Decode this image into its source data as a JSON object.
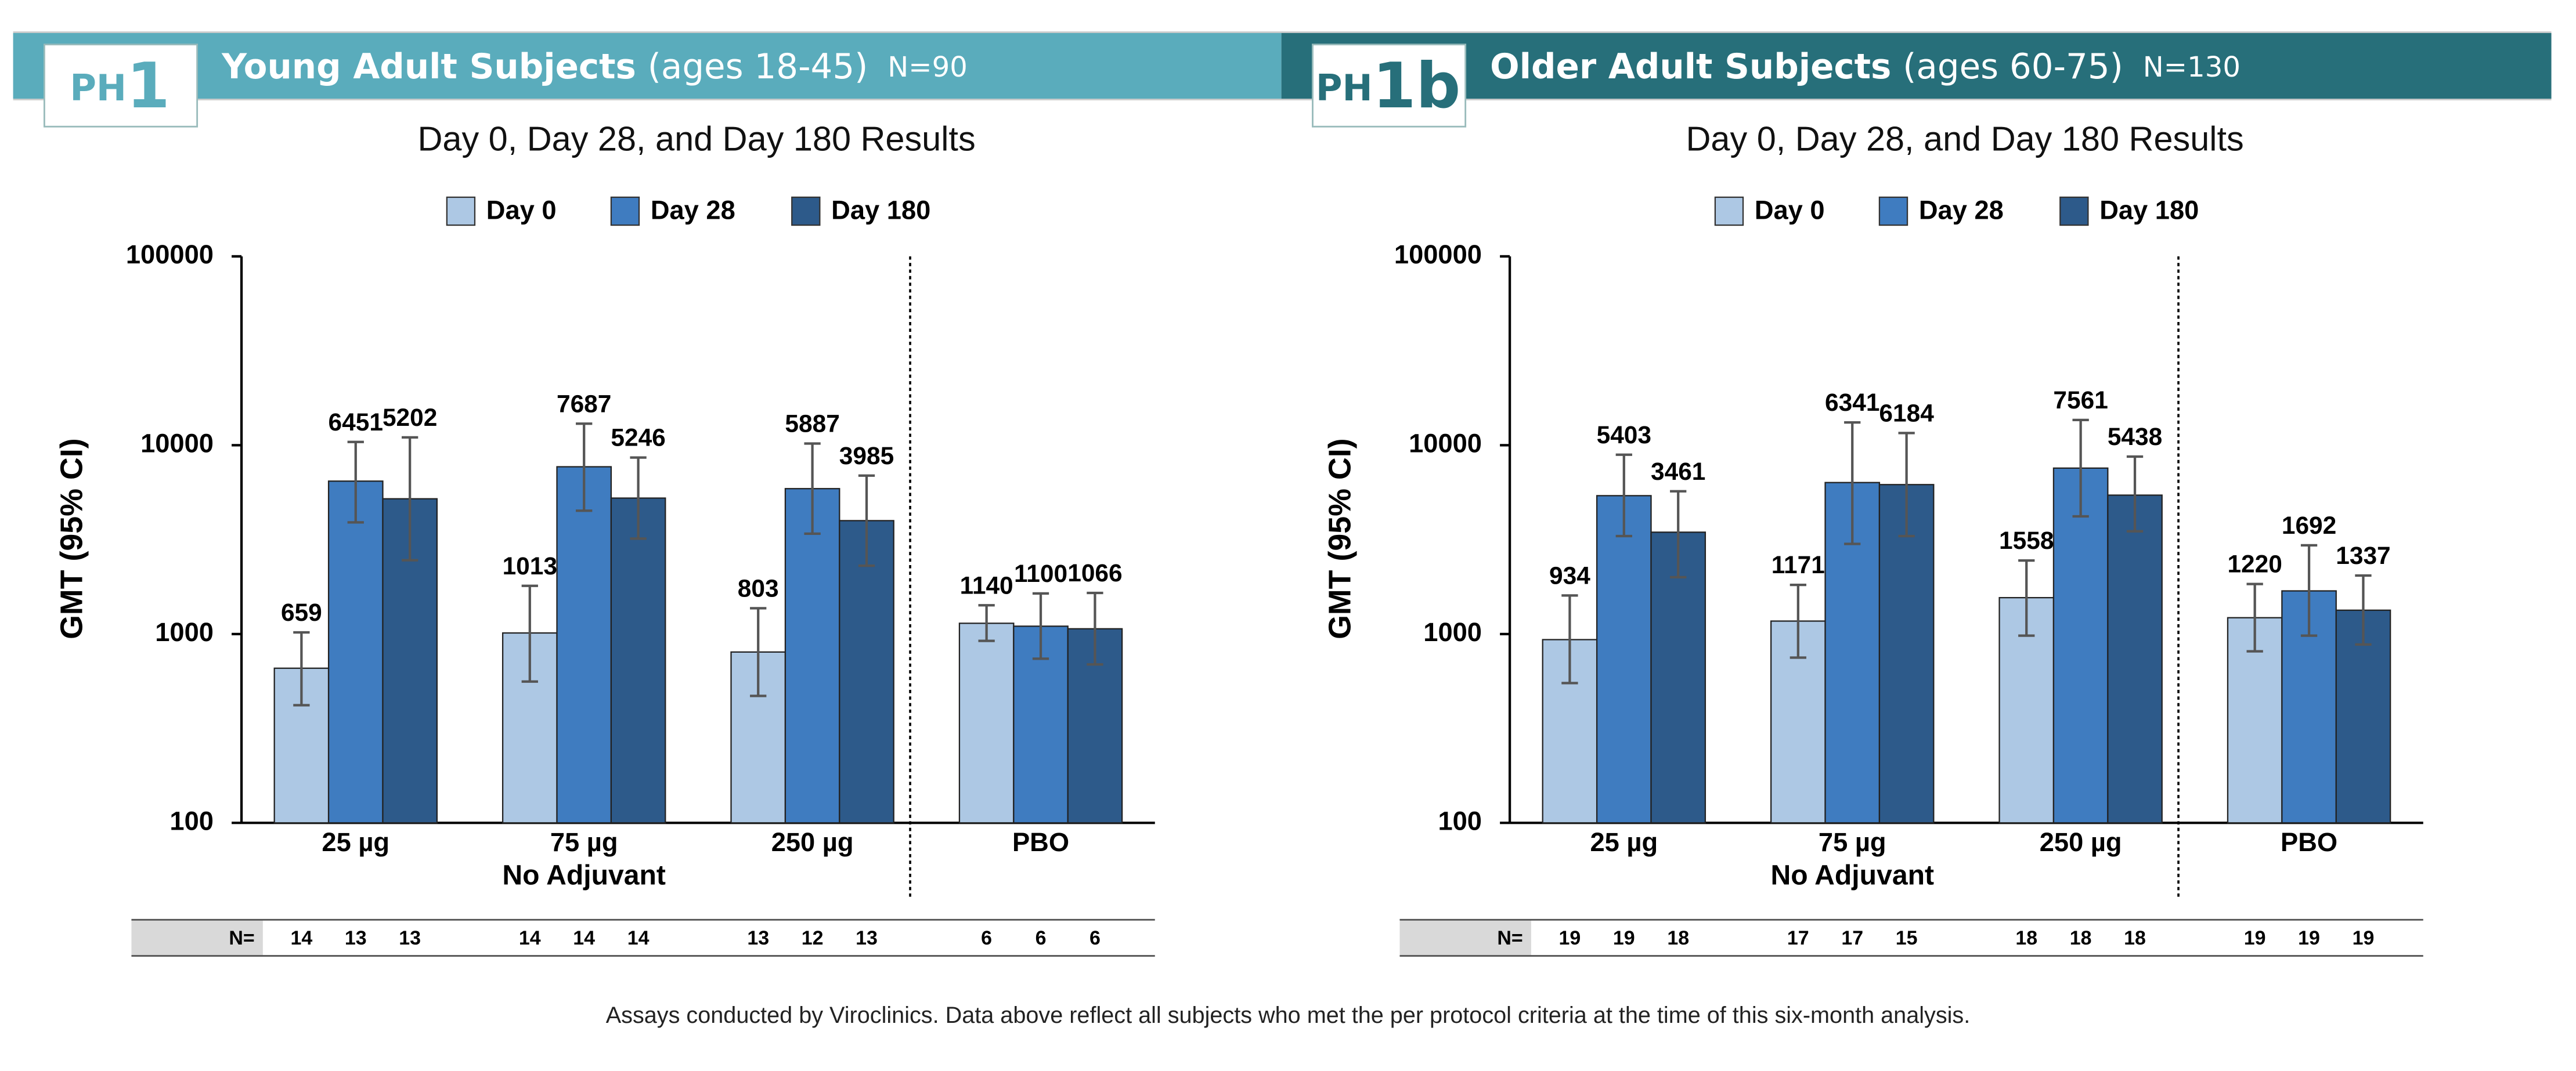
{
  "chart_data": [
    {
      "type": "bar",
      "log_scale": true,
      "badge_prefix": "PH",
      "badge_number": "1",
      "banner_color": "#5aacbc",
      "panel_title": "Young Adult Subjects",
      "panel_subtitle": "(ages 18-45)",
      "panel_n": "N=90",
      "title": "Day 0, Day 28, and Day 180 Results",
      "y_label": "GMT (95% CI)",
      "categories": [
        "25 µg",
        "75 µg",
        "250 µg",
        "PBO"
      ],
      "x_annotation": "No Adjuvant",
      "ylim": [
        100,
        100000
      ],
      "yticks": [
        100,
        1000,
        10000,
        100000
      ],
      "n_label": "N=",
      "series": [
        {
          "name": "Day 0",
          "color": "#adc8e4",
          "values": [
            659,
            1013,
            803,
            1140
          ],
          "error_low": [
            420,
            560,
            470,
            920
          ],
          "error_high": [
            1020,
            1800,
            1370,
            1420
          ],
          "n": [
            14,
            14,
            13,
            6
          ]
        },
        {
          "name": "Day 28",
          "color": "#3f7cc0",
          "values": [
            6451,
            7687,
            5887,
            1100
          ],
          "error_low": [
            3900,
            4500,
            3400,
            740
          ],
          "error_high": [
            10400,
            13000,
            10200,
            1640
          ],
          "n": [
            13,
            14,
            12,
            6
          ]
        },
        {
          "name": "Day 180",
          "color": "#2d5a8a",
          "values": [
            5202,
            5246,
            3985,
            1066
          ],
          "error_low": [
            2460,
            3200,
            2300,
            690
          ],
          "error_high": [
            11000,
            8600,
            6900,
            1650
          ],
          "n": [
            13,
            14,
            13,
            6
          ]
        }
      ]
    },
    {
      "type": "bar",
      "log_scale": true,
      "badge_prefix": "PH",
      "badge_number": "1b",
      "banner_color": "#276f7a",
      "panel_title": "Older Adult Subjects",
      "panel_subtitle": "(ages 60-75)",
      "panel_n": "N=130",
      "title": "Day 0, Day 28, and Day 180 Results",
      "y_label": "GMT (95% CI)",
      "categories": [
        "25 µg",
        "75 µg",
        "250 µg",
        "PBO"
      ],
      "x_annotation": "No Adjuvant",
      "ylim": [
        100,
        100000
      ],
      "yticks": [
        100,
        1000,
        10000,
        100000
      ],
      "n_label": "N=",
      "series": [
        {
          "name": "Day 0",
          "color": "#adc8e4",
          "values": [
            934,
            1171,
            1558,
            1220
          ],
          "error_low": [
            550,
            750,
            980,
            810
          ],
          "error_high": [
            1600,
            1820,
            2450,
            1840
          ],
          "n": [
            19,
            17,
            18,
            19
          ]
        },
        {
          "name": "Day 28",
          "color": "#3f7cc0",
          "values": [
            5403,
            6341,
            7561,
            1692
          ],
          "error_low": [
            3300,
            3000,
            4200,
            980
          ],
          "error_high": [
            8900,
            13200,
            13600,
            2950
          ],
          "n": [
            19,
            17,
            18,
            19
          ]
        },
        {
          "name": "Day 180",
          "color": "#2d5a8a",
          "values": [
            3461,
            6184,
            5438,
            1337
          ],
          "error_low": [
            2000,
            3300,
            3500,
            880
          ],
          "error_high": [
            5700,
            11600,
            8700,
            2040
          ],
          "n": [
            18,
            15,
            18,
            19
          ]
        }
      ]
    }
  ],
  "footnote": "Assays conducted by Viroclinics. Data above reflect all subjects who met the per protocol criteria at the time of this six-month analysis."
}
